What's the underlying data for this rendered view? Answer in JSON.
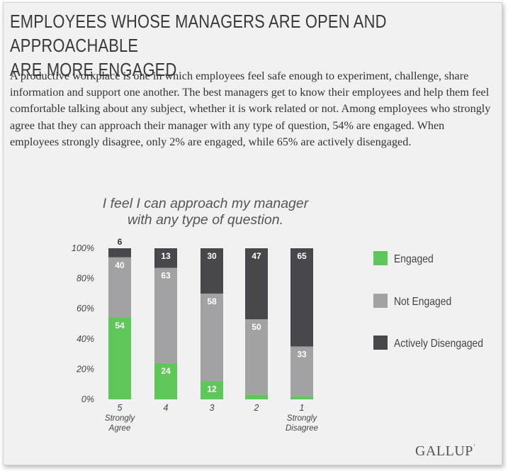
{
  "header": {
    "title_line1": "EMPLOYEES WHOSE MANAGERS ARE OPEN AND APPROACHABLE",
    "title_line2": "ARE MORE ENGAGED",
    "description": "A productive workplace is one in which employees feel safe enough to experiment, challenge, share information and support one another. The best managers get to know their employees and help them feel comfortable talking about any subject, whether it is work related or not. Among employees who strongly agree that they can approach their manager with any type of question, 54% are engaged. When employees strongly disagree, only 2% are engaged, while 65% are actively disengaged."
  },
  "chart_data": {
    "type": "bar",
    "stacked": true,
    "title_line1": "I feel I can approach my manager",
    "title_line2": "with any type of question.",
    "categories": [
      {
        "number": "5",
        "sub1": "Strongly",
        "sub2": "Agree"
      },
      {
        "number": "4",
        "sub1": "",
        "sub2": ""
      },
      {
        "number": "3",
        "sub1": "",
        "sub2": ""
      },
      {
        "number": "2",
        "sub1": "",
        "sub2": ""
      },
      {
        "number": "1",
        "sub1": "Strongly",
        "sub2": "Disagree"
      }
    ],
    "series": [
      {
        "name": "Engaged",
        "color": "#5fc65a",
        "values": [
          54,
          24,
          12,
          3,
          2
        ],
        "labels": [
          "54",
          "24",
          "12",
          "",
          ""
        ]
      },
      {
        "name": "Not Engaged",
        "color": "#a2a2a4",
        "values": [
          40,
          63,
          58,
          50,
          33
        ],
        "labels": [
          "40",
          "63",
          "58",
          "50",
          "33"
        ]
      },
      {
        "name": "Actively Disengaged",
        "color": "#48484c",
        "values": [
          6,
          13,
          30,
          47,
          65
        ],
        "labels": [
          "6",
          "13",
          "30",
          "47",
          "65"
        ]
      }
    ],
    "yticks": [
      "0%",
      "20%",
      "40%",
      "60%",
      "80%",
      "100%"
    ],
    "ylim": [
      0,
      100
    ],
    "legend_position": "right"
  },
  "branding": {
    "logo": "GALLUP"
  }
}
